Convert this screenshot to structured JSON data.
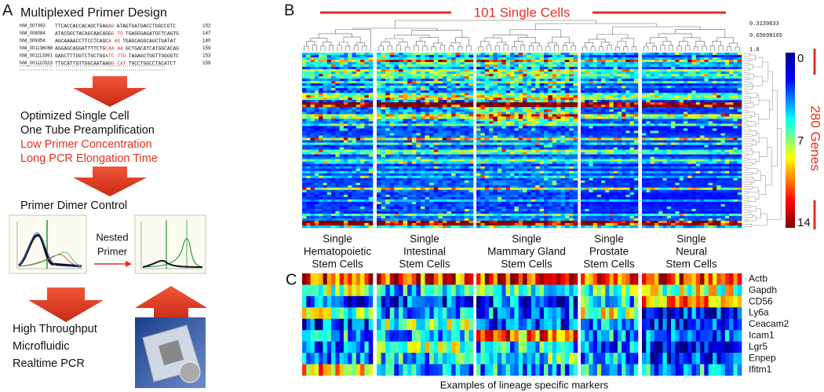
{
  "panel_a": {
    "letter": "A",
    "title": "Multiplexed Primer Design",
    "sequences": [
      {
        "id": "NM_007393",
        "seq1": "TTCACCACCACAGCTGAG",
        "red": "AG",
        "seq2": "ATAGTGATGACCTGGCCGTC",
        "len": "152"
      },
      {
        "id": "NM_008084",
        "seq1": "ATACGGCTACAGCAACAGG",
        "red": "G TG",
        "seq2": "TGAGGGAGATGCTCAGTG",
        "len": "147"
      },
      {
        "id": "NM_009354",
        "seq1": "AGCAAAACCTTCCTCAGC",
        "red": "A AG",
        "seq2": "TGAGCAGGCAGCTGATAT",
        "len": "140"
      },
      {
        "id": "NM_001136068",
        "seq1": "AGGAGCAGGATTTTCTG",
        "red": "CAA AA",
        "seq2": "GCTGACATCATGGCACAG",
        "len": "159"
      },
      {
        "id": "NM_001113391",
        "seq1": "GAGCTTTGGTCTGCTGG",
        "red": "ATC TTG",
        "seq2": "TAGAGCTGGTTGGGGTC",
        "len": "153"
      },
      {
        "id": "NM_001110323",
        "seq1": "TTGCATTGTTGGCAATAAG",
        "red": "G CAT",
        "seq2": "TGCCTGGCCTACATCT",
        "len": "159"
      }
    ],
    "step2": [
      "Optimized Single Cell",
      "One Tube Preamplification"
    ],
    "step2_red": [
      "Low Primer Concentration",
      "Long PCR Elongation Time"
    ],
    "step3": "Primer Dimer Control",
    "nested": [
      "Nested",
      "Primer"
    ],
    "step4": [
      "High Throughput",
      "Microfluidic",
      "Realtime PCR"
    ]
  },
  "panel_b": {
    "letter": "B",
    "title": "101 Single Cells",
    "scale": [
      "0.3139633",
      "0.65698165",
      "1.0"
    ],
    "colorbar": [
      "0",
      "7",
      "14"
    ],
    "genes_label": "280 Genes",
    "groups": [
      [
        "Single",
        "Hematopoietic",
        "Stem Cells"
      ],
      [
        "Single",
        "Intestinal",
        "Stem Cells"
      ],
      [
        "Single",
        "Mammary Gland",
        "Stem Cells"
      ],
      [
        "Single",
        "Prostate",
        "Stem Cells"
      ],
      [
        "Single",
        "Neural",
        "Stem Cells"
      ]
    ]
  },
  "panel_c": {
    "letter": "C",
    "genes": [
      "Actb",
      "Gapdh",
      "CD56",
      "Ly6a",
      "Ceacam2",
      "Icam1",
      "Lgr5",
      "Enpep",
      "Ifitm1"
    ],
    "caption": "Examples of lineage specific markers"
  }
}
